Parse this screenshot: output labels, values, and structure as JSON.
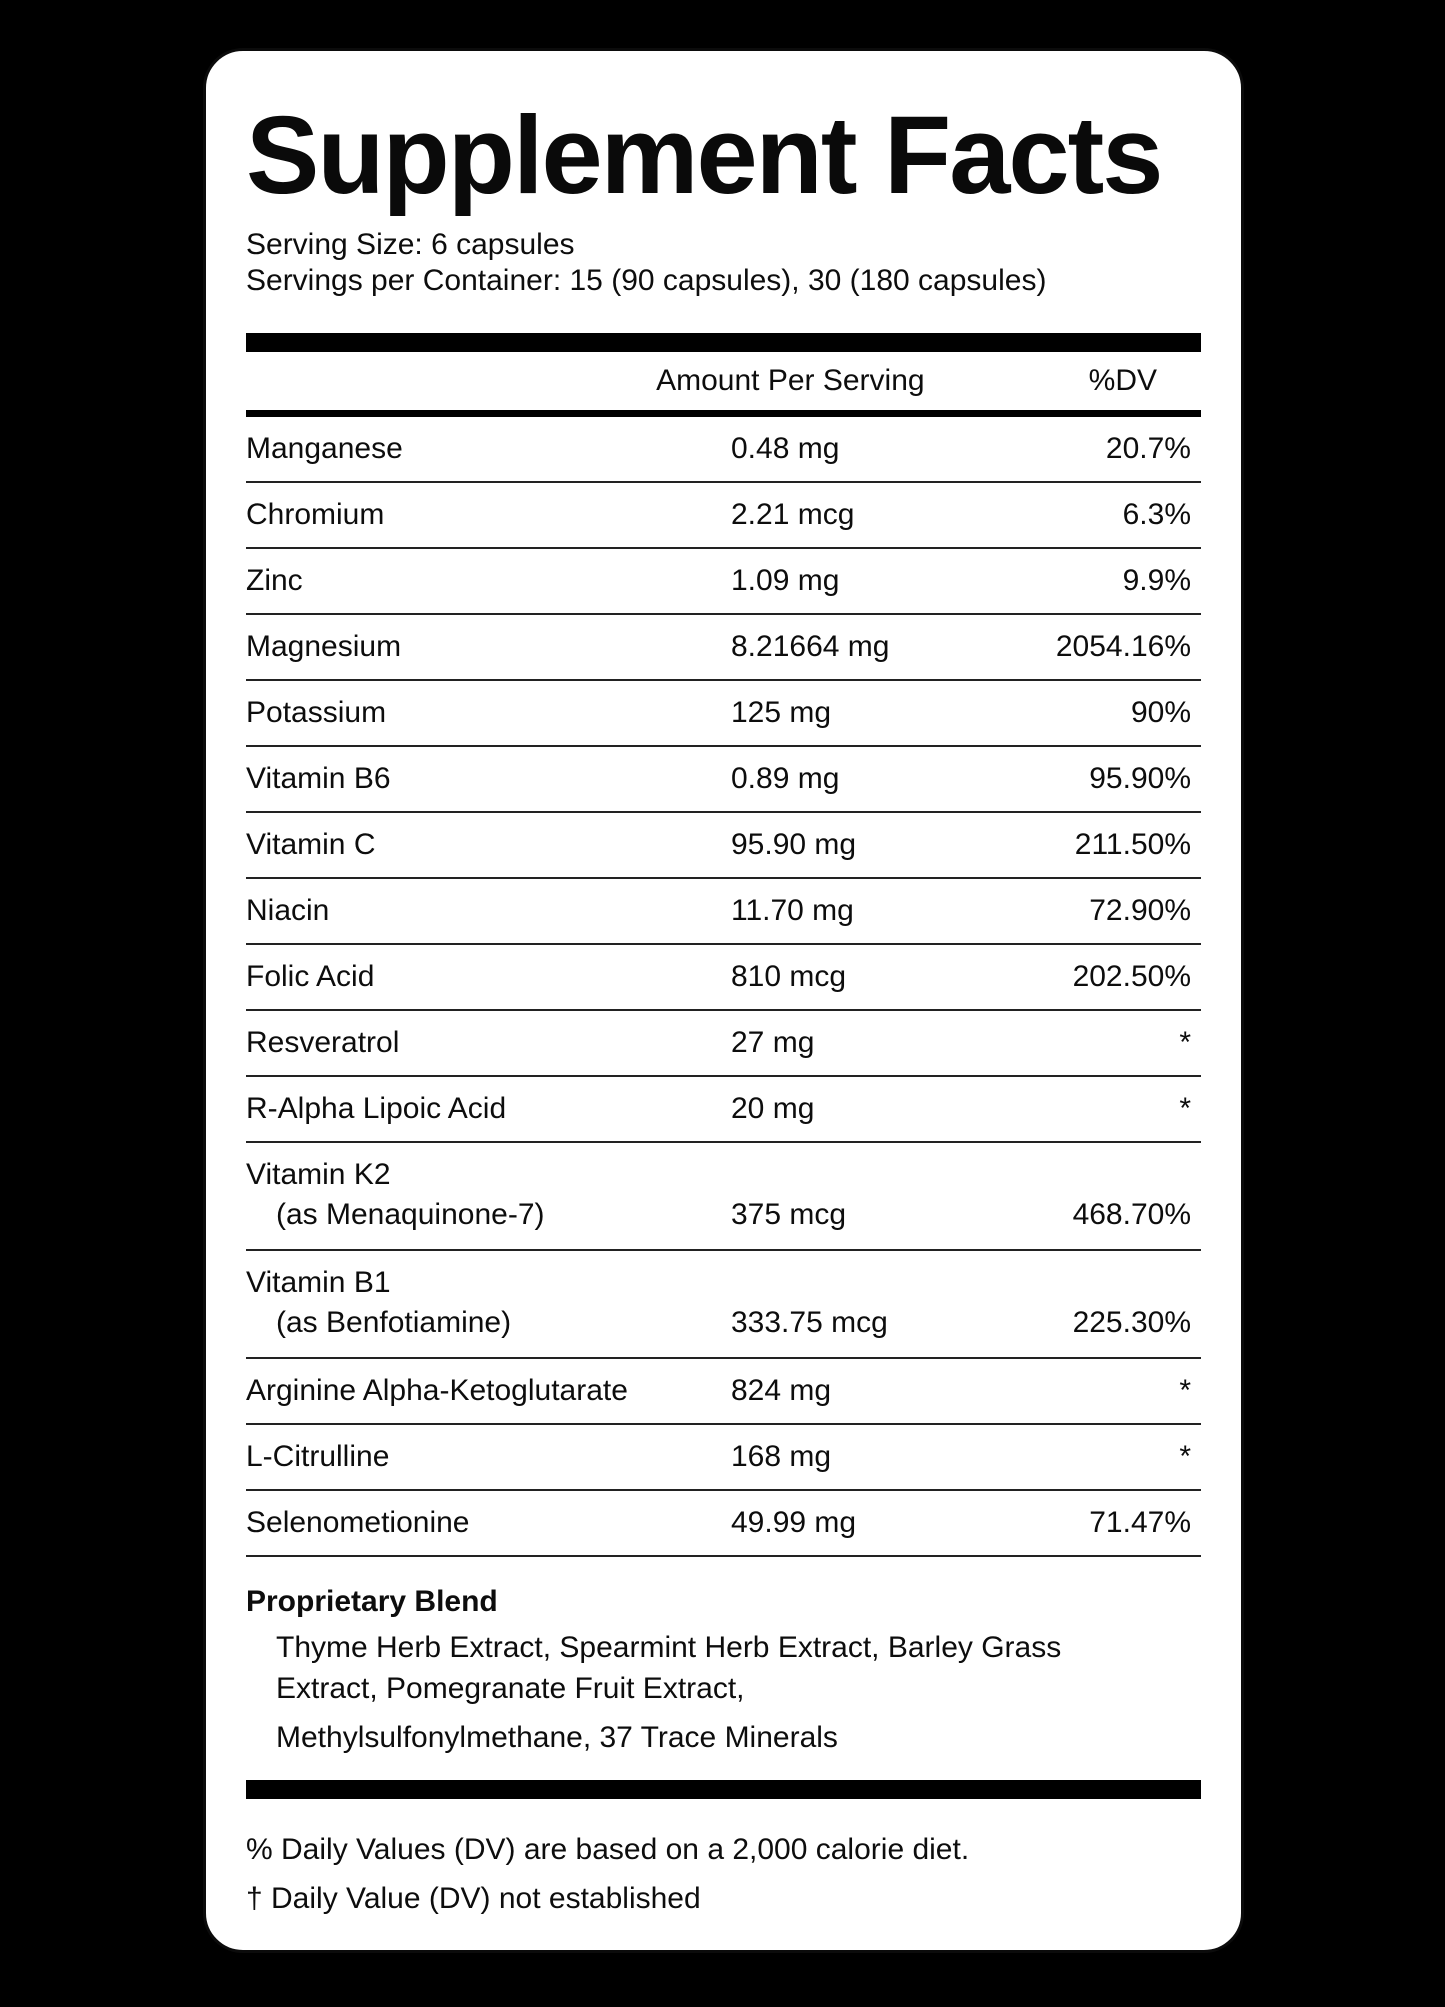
{
  "title": "Supplement Facts",
  "serving_size": "Serving Size: 6 capsules",
  "servings_per_container": "Servings per Container: 15 (90 capsules), 30 (180 capsules)",
  "table": {
    "headers": {
      "amount": "Amount Per Serving",
      "dv": "%DV"
    },
    "rows": [
      {
        "name": "Manganese",
        "amount": "0.48 mg",
        "dv": "20.7%"
      },
      {
        "name": "Chromium",
        "amount": "2.21 mcg",
        "dv": "6.3%"
      },
      {
        "name": "Zinc",
        "amount": "1.09 mg",
        "dv": "9.9%"
      },
      {
        "name": "Magnesium",
        "amount": "8.21664 mg",
        "dv": "2054.16%"
      },
      {
        "name": "Potassium",
        "amount": "125 mg",
        "dv": "90%"
      },
      {
        "name": "Vitamin B6",
        "amount": "0.89 mg",
        "dv": "95.90%"
      },
      {
        "name": "Vitamin C",
        "amount": "95.90 mg",
        "dv": "211.50%"
      },
      {
        "name": "Niacin",
        "amount": "11.70 mg",
        "dv": "72.90%"
      },
      {
        "name": "Folic Acid",
        "amount": "810 mcg",
        "dv": "202.50%"
      },
      {
        "name": "Resveratrol",
        "amount": "27 mg",
        "dv": "*"
      },
      {
        "name": "R-Alpha Lipoic Acid",
        "amount": "20 mg",
        "dv": "*"
      },
      {
        "name": "Vitamin K2",
        "sub": "(as Menaquinone-7)",
        "amount": "375 mcg",
        "dv": "468.70%"
      },
      {
        "name": "Vitamin B1",
        "sub": "(as Benfotiamine)",
        "amount": "333.75 mcg",
        "dv": "225.30%"
      },
      {
        "name": "Arginine Alpha-Ketoglutarate",
        "amount": "824 mg",
        "dv": "*"
      },
      {
        "name": "L-Citrulline",
        "amount": "168 mg",
        "dv": "*"
      },
      {
        "name": "Selenometionine",
        "amount": "49.99 mg",
        "dv": "71.47%"
      }
    ]
  },
  "proprietary_blend": {
    "heading": "Proprietary Blend",
    "lines": [
      "Thyme Herb Extract, Spearmint Herb Extract, Barley Grass",
      "Extract, Pomegranate Fruit Extract,",
      "Methylsulfonylmethane, 37 Trace Minerals"
    ]
  },
  "footnotes": [
    "% Daily Values (DV) are based on a 2,000 calorie diet.",
    "† Daily Value (DV) not established"
  ],
  "colors": {
    "background": "#000000",
    "card": "#ffffff",
    "text": "#0d0d0d"
  }
}
